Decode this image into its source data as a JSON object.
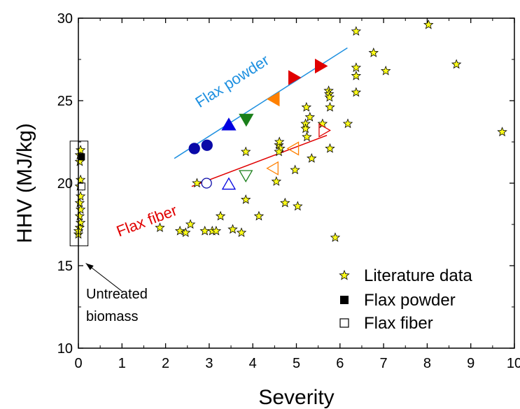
{
  "chart_data": {
    "type": "scatter",
    "xlabel": "Severity",
    "ylabel": "HHV (MJ/kg)",
    "xlim": [
      0,
      10
    ],
    "ylim": [
      10,
      30
    ],
    "xticks": [
      0,
      1,
      2,
      3,
      4,
      5,
      6,
      7,
      8,
      9,
      10
    ],
    "yticks": [
      10,
      15,
      20,
      25,
      30
    ],
    "grid": false,
    "legend_position": "bottom-right",
    "legend": [
      "Literature data",
      "Flax powder",
      "Flax fiber"
    ],
    "annotation": "Untreated biomass",
    "literature_data": [
      [
        0.0,
        16.9
      ],
      [
        0.03,
        17.3
      ],
      [
        0.05,
        17.6
      ],
      [
        0.03,
        18.0
      ],
      [
        0.05,
        18.4
      ],
      [
        0.03,
        18.8
      ],
      [
        0.05,
        19.2
      ],
      [
        0.03,
        19.8
      ],
      [
        0.05,
        20.2
      ],
      [
        0.03,
        21.7
      ],
      [
        0.05,
        22.0
      ],
      [
        0.03,
        21.3
      ],
      [
        0.0,
        17.1
      ],
      [
        1.87,
        17.3
      ],
      [
        2.33,
        17.1
      ],
      [
        2.46,
        17.0
      ],
      [
        2.57,
        17.5
      ],
      [
        2.72,
        20.0
      ],
      [
        2.9,
        17.1
      ],
      [
        3.07,
        17.1
      ],
      [
        3.16,
        17.1
      ],
      [
        3.26,
        18.0
      ],
      [
        3.54,
        17.2
      ],
      [
        3.74,
        17.0
      ],
      [
        3.84,
        19.0
      ],
      [
        3.84,
        21.9
      ],
      [
        4.14,
        18.0
      ],
      [
        4.54,
        20.1
      ],
      [
        4.6,
        22.3
      ],
      [
        4.61,
        22.5
      ],
      [
        4.63,
        22.1
      ],
      [
        4.6,
        21.9
      ],
      [
        4.74,
        18.8
      ],
      [
        4.97,
        20.8
      ],
      [
        5.03,
        18.6
      ],
      [
        5.21,
        23.6
      ],
      [
        5.23,
        24.6
      ],
      [
        5.21,
        23.3
      ],
      [
        5.24,
        22.8
      ],
      [
        5.31,
        24.0
      ],
      [
        5.35,
        21.5
      ],
      [
        5.6,
        23.6
      ],
      [
        5.74,
        25.6
      ],
      [
        5.75,
        25.4
      ],
      [
        5.77,
        24.6
      ],
      [
        5.76,
        25.2
      ],
      [
        5.77,
        22.1
      ],
      [
        5.89,
        16.7
      ],
      [
        6.18,
        23.6
      ],
      [
        6.37,
        29.2
      ],
      [
        6.37,
        27.0
      ],
      [
        6.37,
        26.5
      ],
      [
        6.37,
        25.5
      ],
      [
        6.77,
        27.9
      ],
      [
        7.05,
        26.8
      ],
      [
        8.03,
        29.6
      ],
      [
        8.67,
        27.2
      ],
      [
        9.72,
        23.1
      ]
    ],
    "flax_powder_line": [
      [
        2.2,
        21.5
      ],
      [
        6.17,
        28.2
      ]
    ],
    "flax_fiber_line": [
      [
        2.6,
        19.8
      ],
      [
        5.7,
        22.9
      ]
    ],
    "flax_powder_untreated": [
      0.07,
      21.6
    ],
    "flax_fiber_untreated": [
      0.07,
      19.8
    ],
    "flax_powder_points": [
      {
        "x": 2.66,
        "y": 22.1,
        "marker": "circle",
        "color": "#0a0aa8"
      },
      {
        "x": 2.95,
        "y": 22.3,
        "marker": "circle",
        "color": "#0a0aa8"
      },
      {
        "x": 3.45,
        "y": 23.5,
        "marker": "triangle-up",
        "color": "#0000e0"
      },
      {
        "x": 3.85,
        "y": 23.9,
        "marker": "triangle-down",
        "color": "#1a7f1a"
      },
      {
        "x": 4.5,
        "y": 25.1,
        "marker": "triangle-left",
        "color": "#ff8000"
      },
      {
        "x": 4.93,
        "y": 26.4,
        "marker": "triangle-right",
        "color": "#e00000"
      },
      {
        "x": 5.54,
        "y": 27.1,
        "marker": "triangle-right",
        "color": "#e00000"
      }
    ],
    "flax_fiber_points": [
      {
        "x": 2.94,
        "y": 20.0,
        "marker": "circle",
        "color": "#0a0aa8"
      },
      {
        "x": 3.45,
        "y": 19.9,
        "marker": "triangle-up",
        "color": "#0000e0"
      },
      {
        "x": 3.84,
        "y": 20.5,
        "marker": "triangle-down",
        "color": "#1a7f1a"
      },
      {
        "x": 4.48,
        "y": 20.9,
        "marker": "triangle-left",
        "color": "#ff8000"
      },
      {
        "x": 4.95,
        "y": 22.1,
        "marker": "triangle-left",
        "color": "#ff8000"
      },
      {
        "x": 5.62,
        "y": 23.2,
        "marker": "triangle-right",
        "color": "#e00000"
      }
    ],
    "line_labels": [
      {
        "text": "Flax powder",
        "color": "#1e90e0"
      },
      {
        "text": "Flax fiber",
        "color": "#e00000"
      }
    ],
    "colors": {
      "star": "#ffff1a",
      "powder_line": "#1e90e0",
      "fiber_line": "#e00000"
    }
  }
}
